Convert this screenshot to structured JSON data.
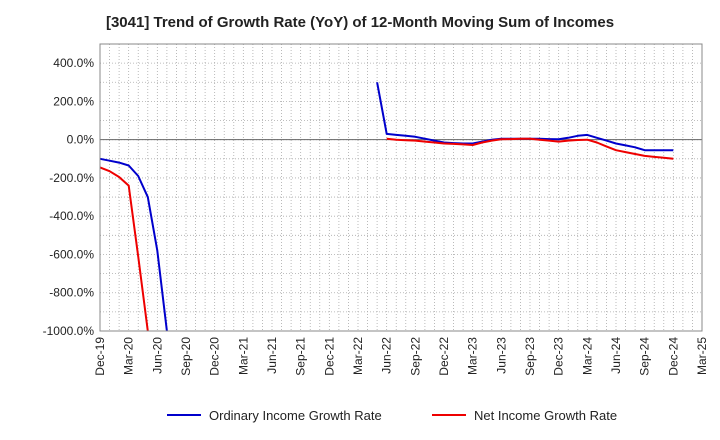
{
  "chart_data": {
    "type": "line",
    "title": "[3041]  Trend of Growth Rate (YoY) of 12-Month Moving Sum of Incomes",
    "xlabel": "",
    "ylabel": "",
    "ylim": [
      -1000,
      500
    ],
    "yticks": [
      400,
      200,
      0,
      -200,
      -400,
      -600,
      -800,
      -1000
    ],
    "ytick_labels": [
      "400.0%",
      "200.0%",
      "0.0%",
      "-200.0%",
      "-400.0%",
      "-600.0%",
      "-800.0%",
      "-1000.0%"
    ],
    "x_range": [
      "Dec-19",
      "Mar-25"
    ],
    "xtick_labels": [
      "Dec-19",
      "Mar-20",
      "Jun-20",
      "Sep-20",
      "Dec-20",
      "Mar-21",
      "Jun-21",
      "Sep-21",
      "Dec-21",
      "Mar-22",
      "Jun-22",
      "Sep-22",
      "Dec-22",
      "Mar-23",
      "Jun-23",
      "Sep-23",
      "Dec-23",
      "Mar-24",
      "Jun-24",
      "Sep-24",
      "Dec-24",
      "Mar-25"
    ],
    "grid": true,
    "legend_position": "bottom",
    "series": [
      {
        "name": "Ordinary Income Growth Rate",
        "color": "#0000cc",
        "points": [
          [
            "Dec-19",
            -100
          ],
          [
            "Jan-20",
            -110
          ],
          [
            "Feb-20",
            -120
          ],
          [
            "Mar-20",
            -135
          ],
          [
            "Apr-20",
            -190
          ],
          [
            "May-20",
            -300
          ],
          [
            "Jun-20",
            -580
          ],
          [
            "Jul-20",
            -1000
          ],
          null,
          [
            "May-22",
            300
          ],
          [
            "Jun-22",
            30
          ],
          [
            "Jul-22",
            25
          ],
          [
            "Aug-22",
            20
          ],
          [
            "Sep-22",
            15
          ],
          [
            "Oct-22",
            5
          ],
          [
            "Nov-22",
            -5
          ],
          [
            "Dec-22",
            -15
          ],
          [
            "Jan-23",
            -18
          ],
          [
            "Feb-23",
            -20
          ],
          [
            "Mar-23",
            -20
          ],
          [
            "Apr-23",
            -10
          ],
          [
            "May-23",
            0
          ],
          [
            "Jun-23",
            5
          ],
          [
            "Jul-23",
            5
          ],
          [
            "Aug-23",
            5
          ],
          [
            "Sep-23",
            5
          ],
          [
            "Oct-23",
            5
          ],
          [
            "Nov-23",
            3
          ],
          [
            "Dec-23",
            2
          ],
          [
            "Jan-24",
            10
          ],
          [
            "Feb-24",
            20
          ],
          [
            "Mar-24",
            25
          ],
          [
            "Apr-24",
            10
          ],
          [
            "May-24",
            -5
          ],
          [
            "Jun-24",
            -20
          ],
          [
            "Jul-24",
            -30
          ],
          [
            "Aug-24",
            -40
          ],
          [
            "Sep-24",
            -55
          ],
          [
            "Oct-24",
            -55
          ],
          [
            "Nov-24",
            -55
          ],
          [
            "Dec-24",
            -55
          ]
        ]
      },
      {
        "name": "Net Income Growth Rate",
        "color": "#ee0000",
        "points": [
          [
            "Dec-19",
            -145
          ],
          [
            "Jan-20",
            -165
          ],
          [
            "Feb-20",
            -195
          ],
          [
            "Mar-20",
            -240
          ],
          [
            "Apr-20",
            -610
          ],
          [
            "May-20",
            -1000
          ],
          null,
          [
            "Jun-22",
            5
          ],
          [
            "Jul-22",
            0
          ],
          [
            "Aug-22",
            -3
          ],
          [
            "Sep-22",
            -5
          ],
          [
            "Oct-22",
            -10
          ],
          [
            "Nov-22",
            -15
          ],
          [
            "Dec-22",
            -20
          ],
          [
            "Jan-23",
            -22
          ],
          [
            "Feb-23",
            -25
          ],
          [
            "Mar-23",
            -28
          ],
          [
            "Apr-23",
            -15
          ],
          [
            "May-23",
            -5
          ],
          [
            "Jun-23",
            2
          ],
          [
            "Jul-23",
            3
          ],
          [
            "Aug-23",
            5
          ],
          [
            "Sep-23",
            5
          ],
          [
            "Oct-23",
            0
          ],
          [
            "Nov-23",
            -5
          ],
          [
            "Dec-23",
            -10
          ],
          [
            "Jan-24",
            -5
          ],
          [
            "Feb-24",
            -2
          ],
          [
            "Mar-24",
            0
          ],
          [
            "Apr-24",
            -15
          ],
          [
            "May-24",
            -35
          ],
          [
            "Jun-24",
            -55
          ],
          [
            "Jul-24",
            -65
          ],
          [
            "Aug-24",
            -75
          ],
          [
            "Sep-24",
            -85
          ],
          [
            "Oct-24",
            -90
          ],
          [
            "Nov-24",
            -95
          ],
          [
            "Dec-24",
            -100
          ]
        ]
      }
    ]
  }
}
